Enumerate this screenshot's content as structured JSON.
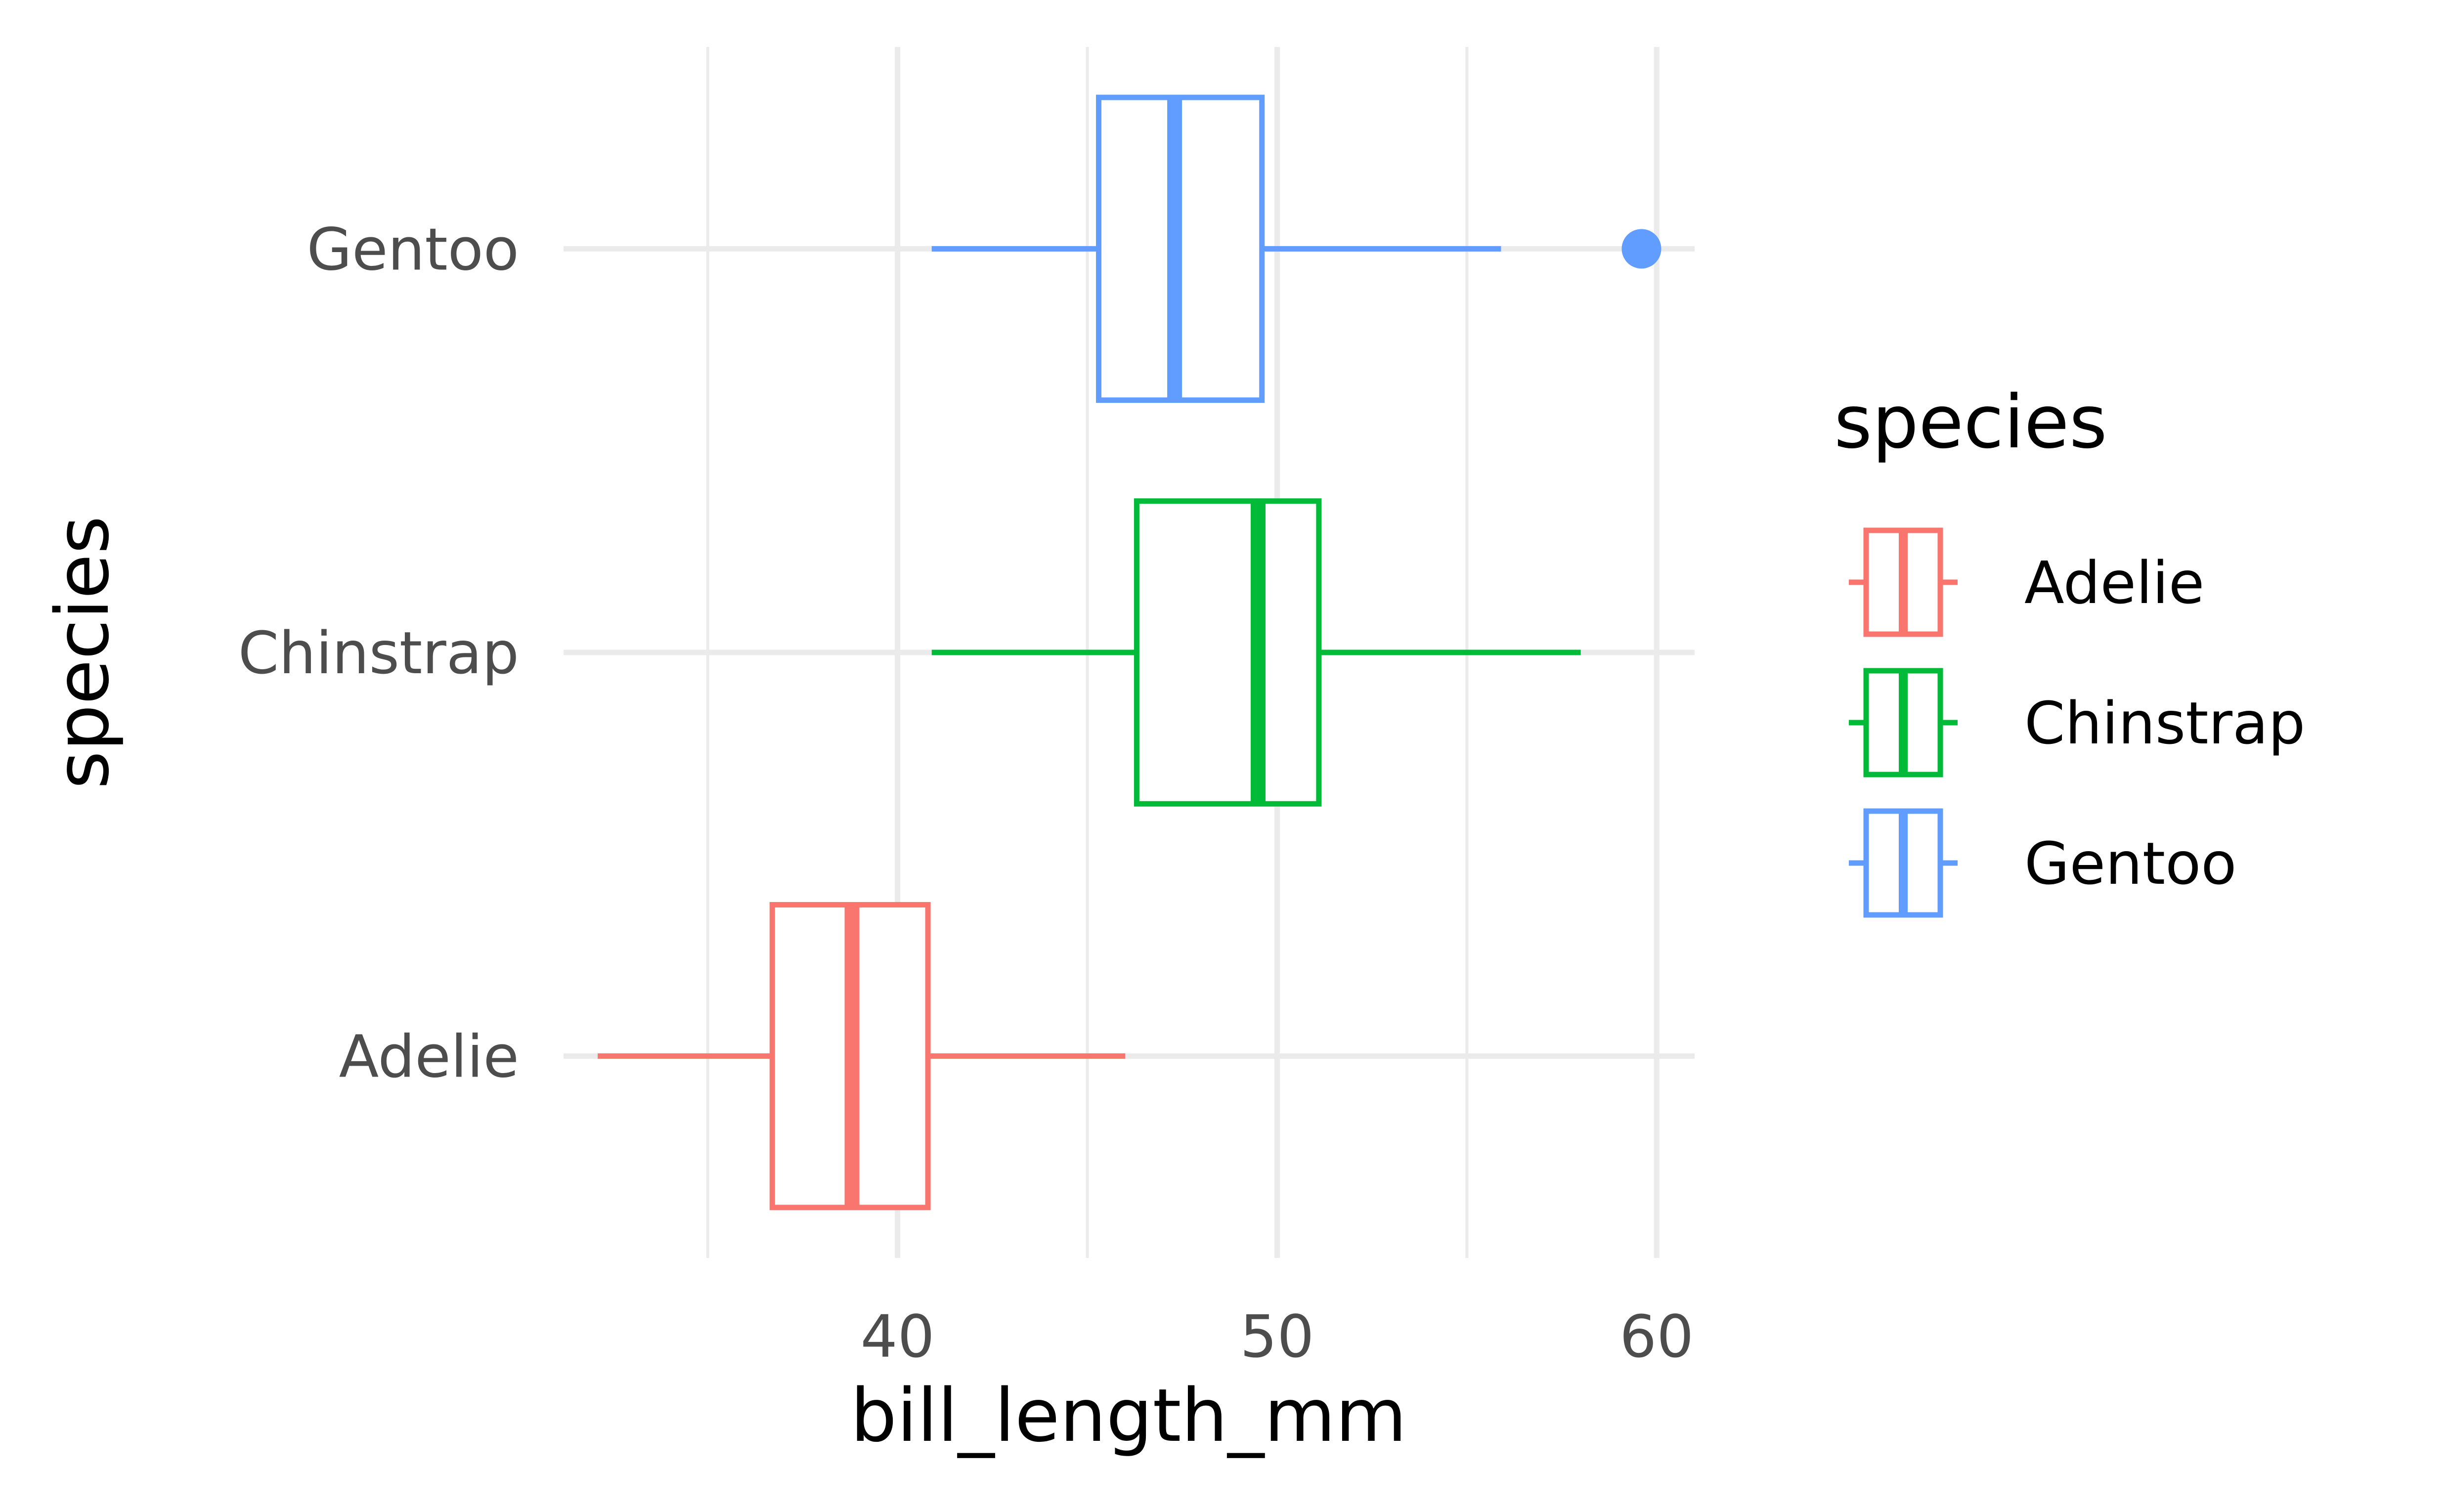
{
  "chart_data": {
    "type": "boxplot",
    "orientation": "horizontal",
    "xlabel": "bill_length_mm",
    "ylabel": "species",
    "xlim": [
      31.2,
      61.0
    ],
    "x_ticks": [
      40,
      50,
      60
    ],
    "x_tick_labels": [
      "40",
      "50",
      "60"
    ],
    "grid": true,
    "categories": [
      "Adelie",
      "Chinstrap",
      "Gentoo"
    ],
    "series": [
      {
        "name": "Adelie",
        "color": "#F8766D",
        "whisker_low": 32.1,
        "q1": 36.7,
        "median": 38.8,
        "q3": 40.8,
        "whisker_high": 46.0,
        "outliers": []
      },
      {
        "name": "Chinstrap",
        "color": "#00BA38",
        "whisker_low": 40.9,
        "q1": 46.3,
        "median": 49.5,
        "q3": 51.1,
        "whisker_high": 58.0,
        "outliers": []
      },
      {
        "name": "Gentoo",
        "color": "#619CFF",
        "whisker_low": 40.9,
        "q1": 45.3,
        "median": 47.3,
        "q3": 49.6,
        "whisker_high": 55.9,
        "outliers": [
          59.6
        ]
      }
    ],
    "legend": {
      "title": "species",
      "position": "right",
      "entries": [
        "Adelie",
        "Chinstrap",
        "Gentoo"
      ]
    }
  }
}
